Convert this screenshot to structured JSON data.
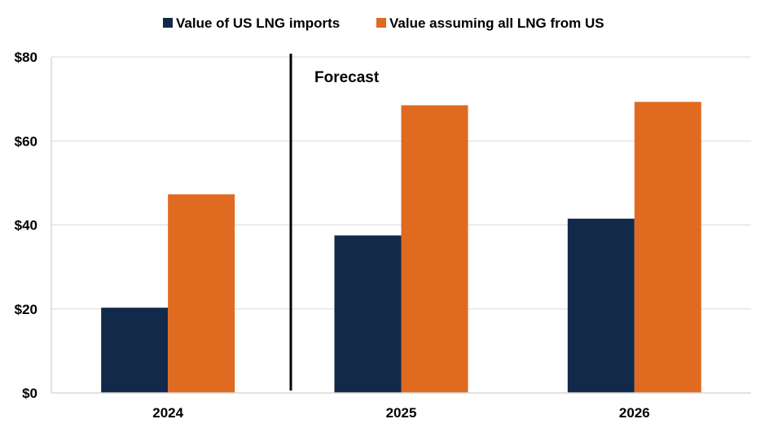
{
  "chart_data": {
    "type": "bar",
    "title": "",
    "xlabel": "",
    "ylabel": "",
    "categories": [
      "2024",
      "2025",
      "2026"
    ],
    "series": [
      {
        "name": "Value of US LNG imports",
        "color": "#12294a",
        "values": [
          20.3,
          37.5,
          41.5
        ]
      },
      {
        "name": "Value assuming all LNG from US",
        "color": "#e06b20",
        "values": [
          47.3,
          68.5,
          69.3
        ]
      }
    ],
    "ylim": [
      0,
      80
    ],
    "yticks": [
      0,
      20,
      40,
      60,
      80
    ],
    "ytick_labels": [
      "$0",
      "$20",
      "$40",
      "$60",
      "$80"
    ],
    "grid": true,
    "legend_position": "top",
    "annotation": {
      "text": "Forecast",
      "divider_between": [
        "2024",
        "2025"
      ]
    }
  }
}
